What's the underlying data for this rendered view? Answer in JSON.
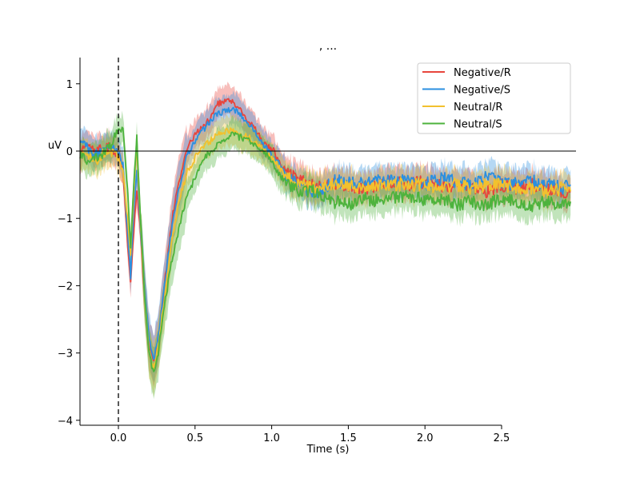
{
  "chart_data": {
    "type": "line",
    "title": ", ...",
    "xlabel": "Time (s)",
    "ylabel": "uV",
    "xlim": [
      -0.25,
      2.95
    ],
    "ylim": [
      -4.05,
      1.38
    ],
    "xticks": [
      0.0,
      0.5,
      1.0,
      1.5,
      2.0,
      2.5
    ],
    "xtick_labels": [
      "0.0",
      "0.5",
      "1.0",
      "1.5",
      "2.0",
      "2.5"
    ],
    "yticks": [
      1,
      0,
      -1,
      -2,
      -3,
      -4
    ],
    "ytick_labels": [
      "1",
      "0",
      "−1",
      "−2",
      "−3",
      "−4"
    ],
    "zero_line": true,
    "event_line_x": 0.0,
    "grid": false,
    "legend_position": "top-right",
    "shading": "confidence band",
    "series": [
      {
        "name": "Negative/R",
        "color": "#e8453c",
        "x": [
          -0.25,
          -0.2,
          -0.15,
          -0.1,
          -0.05,
          0.0,
          0.03,
          0.06,
          0.08,
          0.1,
          0.12,
          0.14,
          0.17,
          0.2,
          0.23,
          0.26,
          0.3,
          0.35,
          0.4,
          0.45,
          0.5,
          0.55,
          0.6,
          0.65,
          0.7,
          0.75,
          0.8,
          0.85,
          0.9,
          0.95,
          1.0,
          1.05,
          1.1,
          1.2,
          1.3,
          1.4,
          1.5,
          1.6,
          1.7,
          1.8,
          1.9,
          2.0,
          2.1,
          2.2,
          2.3,
          2.4,
          2.5,
          2.6,
          2.7,
          2.8,
          2.9,
          2.95
        ],
        "y": [
          -0.05,
          0.1,
          0.0,
          0.05,
          0.05,
          -0.05,
          -0.3,
          -1.4,
          -1.95,
          -1.2,
          -0.55,
          -1.1,
          -2.1,
          -2.9,
          -3.15,
          -2.8,
          -2.0,
          -1.0,
          -0.4,
          0.05,
          0.25,
          0.35,
          0.5,
          0.7,
          0.75,
          0.72,
          0.6,
          0.45,
          0.3,
          0.1,
          0.05,
          -0.15,
          -0.35,
          -0.45,
          -0.55,
          -0.5,
          -0.5,
          -0.55,
          -0.5,
          -0.45,
          -0.5,
          -0.45,
          -0.5,
          -0.55,
          -0.55,
          -0.6,
          -0.5,
          -0.55,
          -0.5,
          -0.55,
          -0.6,
          -0.6
        ]
      },
      {
        "name": "Negative/S",
        "color": "#2b8fe0",
        "x": [
          -0.25,
          -0.2,
          -0.15,
          -0.1,
          -0.05,
          0.0,
          0.03,
          0.06,
          0.08,
          0.1,
          0.12,
          0.14,
          0.17,
          0.2,
          0.23,
          0.26,
          0.3,
          0.35,
          0.4,
          0.45,
          0.5,
          0.55,
          0.6,
          0.65,
          0.7,
          0.75,
          0.8,
          0.85,
          0.9,
          0.95,
          1.0,
          1.05,
          1.1,
          1.2,
          1.3,
          1.4,
          1.5,
          1.6,
          1.7,
          1.8,
          1.9,
          2.0,
          2.1,
          2.2,
          2.3,
          2.4,
          2.5,
          2.6,
          2.7,
          2.8,
          2.9,
          2.95
        ],
        "y": [
          0.1,
          0.05,
          -0.05,
          0.0,
          0.05,
          0.0,
          -0.2,
          -1.2,
          -1.85,
          -0.9,
          -0.3,
          -1.0,
          -2.0,
          -2.8,
          -3.1,
          -2.75,
          -2.0,
          -1.1,
          -0.5,
          -0.05,
          0.15,
          0.3,
          0.45,
          0.55,
          0.6,
          0.62,
          0.55,
          0.4,
          0.25,
          0.1,
          -0.05,
          -0.2,
          -0.4,
          -0.55,
          -0.6,
          -0.45,
          -0.45,
          -0.5,
          -0.45,
          -0.45,
          -0.4,
          -0.5,
          -0.4,
          -0.45,
          -0.5,
          -0.4,
          -0.45,
          -0.5,
          -0.45,
          -0.5,
          -0.55,
          -0.5
        ]
      },
      {
        "name": "Neutral/R",
        "color": "#f2c12e",
        "x": [
          -0.25,
          -0.2,
          -0.15,
          -0.1,
          -0.05,
          0.0,
          0.03,
          0.06,
          0.08,
          0.1,
          0.12,
          0.14,
          0.17,
          0.2,
          0.23,
          0.26,
          0.3,
          0.35,
          0.4,
          0.45,
          0.5,
          0.55,
          0.6,
          0.65,
          0.7,
          0.75,
          0.8,
          0.85,
          0.9,
          0.95,
          1.0,
          1.05,
          1.1,
          1.2,
          1.3,
          1.4,
          1.5,
          1.6,
          1.7,
          1.8,
          1.9,
          2.0,
          2.1,
          2.2,
          2.3,
          2.4,
          2.5,
          2.6,
          2.7,
          2.8,
          2.9,
          2.95
        ],
        "y": [
          -0.1,
          -0.05,
          -0.15,
          -0.05,
          0.0,
          -0.1,
          -0.3,
          -1.0,
          -1.5,
          -0.6,
          0.05,
          -0.9,
          -2.1,
          -3.0,
          -3.25,
          -2.9,
          -2.2,
          -1.3,
          -0.7,
          -0.3,
          -0.1,
          0.05,
          0.15,
          0.25,
          0.3,
          0.3,
          0.25,
          0.2,
          0.1,
          0.0,
          -0.1,
          -0.25,
          -0.4,
          -0.5,
          -0.55,
          -0.5,
          -0.5,
          -0.55,
          -0.5,
          -0.5,
          -0.5,
          -0.5,
          -0.55,
          -0.5,
          -0.55,
          -0.5,
          -0.5,
          -0.55,
          -0.55,
          -0.6,
          -0.55,
          -0.6
        ]
      },
      {
        "name": "Neutral/S",
        "color": "#4db33d",
        "x": [
          -0.25,
          -0.2,
          -0.15,
          -0.1,
          -0.05,
          0.0,
          0.03,
          0.06,
          0.08,
          0.1,
          0.12,
          0.14,
          0.17,
          0.2,
          0.23,
          0.26,
          0.3,
          0.35,
          0.4,
          0.45,
          0.5,
          0.55,
          0.6,
          0.65,
          0.7,
          0.75,
          0.8,
          0.85,
          0.9,
          0.95,
          1.0,
          1.05,
          1.1,
          1.2,
          1.3,
          1.4,
          1.5,
          1.6,
          1.7,
          1.8,
          1.9,
          2.0,
          2.1,
          2.2,
          2.3,
          2.4,
          2.5,
          2.6,
          2.7,
          2.8,
          2.9,
          2.95
        ],
        "y": [
          -0.05,
          -0.15,
          -0.1,
          -0.05,
          0.1,
          0.35,
          0.3,
          -0.6,
          -1.4,
          -0.5,
          0.2,
          -0.8,
          -2.1,
          -3.0,
          -3.3,
          -3.0,
          -2.3,
          -1.6,
          -1.1,
          -0.65,
          -0.4,
          -0.15,
          0.0,
          0.1,
          0.2,
          0.25,
          0.2,
          0.15,
          0.1,
          0.0,
          -0.15,
          -0.35,
          -0.5,
          -0.6,
          -0.6,
          -0.75,
          -0.8,
          -0.7,
          -0.75,
          -0.7,
          -0.65,
          -0.75,
          -0.7,
          -0.8,
          -0.75,
          -0.8,
          -0.7,
          -0.75,
          -0.8,
          -0.75,
          -0.8,
          -0.75
        ]
      }
    ]
  }
}
